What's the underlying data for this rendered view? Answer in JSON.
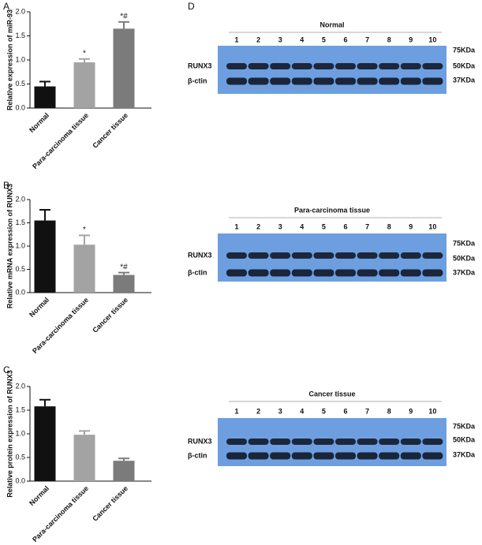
{
  "chart_data": [
    {
      "type": "bar",
      "ylabel": "Relative expression of miR-93",
      "categories": [
        "Normal",
        "Para-carcinoma tissue",
        "Cancer tissue"
      ],
      "values": [
        0.45,
        0.95,
        1.65
      ],
      "errors": [
        0.1,
        0.07,
        0.14
      ],
      "annotations": [
        null,
        "*",
        "*#"
      ],
      "colors": [
        "#111111",
        "#a3a3a3",
        "#7b7b7b"
      ],
      "ylim": [
        0,
        2
      ],
      "yticks": [
        {
          "value": 0,
          "label": "0.0"
        },
        0.5,
        {
          "value": 1,
          "label": "1.0"
        },
        1.5,
        {
          "value": 2,
          "label": "2.0"
        }
      ]
    },
    {
      "type": "bar",
      "ylabel": "Relative mRNA expression of RUNX3",
      "categories": [
        "Normal",
        "Para-carcinoma tissue",
        "Cancer tissue"
      ],
      "values": [
        1.55,
        1.03,
        0.38
      ],
      "errors": [
        0.23,
        0.2,
        0.05
      ],
      "annotations": [
        null,
        "*",
        "*#"
      ],
      "colors": [
        "#111111",
        "#a3a3a3",
        "#7b7b7b"
      ],
      "ylim": [
        0,
        2
      ],
      "yticks": [
        {
          "value": 0,
          "label": "0.0"
        },
        0.5,
        {
          "value": 1,
          "label": "1.0"
        },
        1.5,
        {
          "value": 2,
          "label": "2.0"
        }
      ]
    },
    {
      "type": "bar",
      "ylabel": "Relative protein expression of RUNX3",
      "categories": [
        "Normal",
        "Para-carcinoma tissue",
        "Cancer tissue"
      ],
      "values": [
        1.58,
        0.98,
        0.43
      ],
      "errors": [
        0.14,
        0.08,
        0.05
      ],
      "colors": [
        "#111111",
        "#a3a3a3",
        "#7b7b7b"
      ],
      "ylim": [
        0,
        2
      ],
      "yticks": [
        {
          "value": 0,
          "label": "0.0"
        },
        0.5,
        {
          "value": 1,
          "label": "1.0"
        },
        1.5,
        {
          "value": 2,
          "label": "2.0"
        }
      ]
    }
  ],
  "panel_labels": [
    "A",
    "B",
    "C",
    "D"
  ],
  "blots": [
    {
      "title": "Normal",
      "lanes": [
        "1",
        "2",
        "3",
        "4",
        "5",
        "6",
        "7",
        "8",
        "9",
        "10"
      ],
      "bands": [
        "RUNX3",
        "β-ctin"
      ],
      "markers": [
        "75KDa",
        "50KDa",
        "37KDa"
      ]
    },
    {
      "title": "Para-carcinoma tissue",
      "lanes": [
        "1",
        "2",
        "3",
        "4",
        "5",
        "6",
        "7",
        "8",
        "9",
        "10"
      ],
      "bands": [
        "RUNX3",
        "β-ctin"
      ],
      "markers": [
        "75KDa",
        "50KDa",
        "37KDa"
      ]
    },
    {
      "title": "Cancer tissue",
      "lanes": [
        "1",
        "2",
        "3",
        "4",
        "5",
        "6",
        "7",
        "8",
        "9",
        "10"
      ],
      "bands": [
        "RUNX3",
        "β-ctin"
      ],
      "markers": [
        "75KDa",
        "50KDa",
        "37KDa"
      ]
    }
  ]
}
